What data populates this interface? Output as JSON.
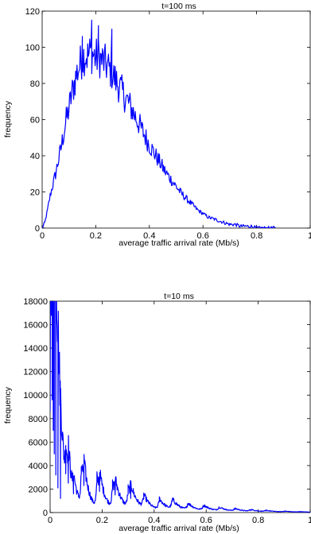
{
  "chart_data": [
    {
      "type": "line",
      "title": "t=100 ms",
      "xlabel": "average traffic arrival rate (Mb/s)",
      "ylabel": "frequency",
      "xlim": [
        0,
        1
      ],
      "ylim": [
        0,
        120
      ],
      "xticks": [
        0,
        0.2,
        0.4,
        0.6,
        0.8,
        1
      ],
      "xtick_labels": [
        "0",
        "0.2",
        "0.4",
        "0.6",
        "0.8",
        "1"
      ],
      "yticks": [
        0,
        20,
        40,
        60,
        80,
        100,
        120
      ],
      "ytick_labels": [
        "0",
        "20",
        "40",
        "60",
        "80",
        "100",
        "120"
      ],
      "grid": false,
      "legend": "none",
      "series": [
        {
          "color": "#0000ff",
          "x": [
            0.0,
            0.01,
            0.02,
            0.03,
            0.04,
            0.05,
            0.06,
            0.07,
            0.08,
            0.09,
            0.1,
            0.11,
            0.12,
            0.13,
            0.14,
            0.15,
            0.16,
            0.17,
            0.18,
            0.19,
            0.2,
            0.21,
            0.22,
            0.23,
            0.24,
            0.25,
            0.26,
            0.27,
            0.28,
            0.29,
            0.3,
            0.31,
            0.32,
            0.33,
            0.34,
            0.35,
            0.36,
            0.37,
            0.38,
            0.39,
            0.4,
            0.42,
            0.44,
            0.46,
            0.48,
            0.5,
            0.52,
            0.54,
            0.56,
            0.58,
            0.6,
            0.62,
            0.64,
            0.66,
            0.68,
            0.7,
            0.72,
            0.74,
            0.76,
            0.78,
            0.8,
            0.82,
            0.84,
            0.86,
            0.87
          ],
          "y": [
            0,
            3,
            10,
            18,
            24,
            30,
            37,
            44,
            52,
            60,
            66,
            74,
            80,
            86,
            90,
            94,
            96,
            95,
            97,
            96,
            94,
            95,
            93,
            92,
            90,
            88,
            86,
            83,
            80,
            78,
            75,
            72,
            70,
            67,
            64,
            61,
            58,
            55,
            52,
            49,
            46,
            41,
            36,
            31,
            27,
            23,
            19,
            16,
            13,
            10,
            8,
            6,
            5,
            4,
            3,
            2,
            2,
            1,
            1,
            1,
            0,
            0,
            0,
            0,
            0
          ]
        }
      ],
      "peaks": [
        {
          "x": 0.185,
          "y": 115
        },
        {
          "x": 0.21,
          "y": 112
        },
        {
          "x": 0.26,
          "y": 110
        },
        {
          "x": 0.15,
          "y": 106
        }
      ]
    },
    {
      "type": "line",
      "title": "t=10 ms",
      "xlabel": "average traffic arrival rate (Mb/s)",
      "ylabel": "frequency",
      "xlim": [
        0,
        1
      ],
      "ylim": [
        0,
        18000
      ],
      "xticks": [
        0,
        0.2,
        0.4,
        0.6,
        0.8,
        1
      ],
      "xtick_labels": [
        "0",
        "0.2",
        "0.4",
        "0.6",
        "0.8",
        "1"
      ],
      "yticks": [
        0,
        2000,
        4000,
        6000,
        8000,
        10000,
        12000,
        14000,
        16000,
        18000
      ],
      "ytick_labels": [
        "0",
        "2000",
        "4000",
        "6000",
        "8000",
        "10000",
        "12000",
        "14000",
        "16000",
        "18000"
      ],
      "grid": false,
      "legend": "none",
      "series": [
        {
          "color": "#0000ff",
          "spikes": [
            {
              "x": 0.002,
              "y": 17600
            },
            {
              "x": 0.005,
              "y": 16800
            },
            {
              "x": 0.008,
              "y": 9600
            },
            {
              "x": 0.012,
              "y": 7000
            },
            {
              "x": 0.016,
              "y": 5000
            },
            {
              "x": 0.022,
              "y": 3200
            },
            {
              "x": 0.03,
              "y": 2100
            },
            {
              "x": 0.04,
              "y": 1200
            },
            {
              "x": 0.06,
              "y": 3300
            },
            {
              "x": 0.07,
              "y": 2500
            },
            {
              "x": 0.09,
              "y": 1600
            },
            {
              "x": 0.12,
              "y": 3300
            },
            {
              "x": 0.13,
              "y": 2300
            },
            {
              "x": 0.18,
              "y": 2600
            },
            {
              "x": 0.19,
              "y": 1800
            },
            {
              "x": 0.24,
              "y": 2000
            },
            {
              "x": 0.25,
              "y": 1500
            },
            {
              "x": 0.3,
              "y": 1600
            },
            {
              "x": 0.31,
              "y": 1200
            },
            {
              "x": 0.36,
              "y": 1200
            },
            {
              "x": 0.42,
              "y": 1050
            },
            {
              "x": 0.47,
              "y": 950
            },
            {
              "x": 0.53,
              "y": 650
            },
            {
              "x": 0.59,
              "y": 500
            },
            {
              "x": 0.65,
              "y": 350
            },
            {
              "x": 0.71,
              "y": 250
            },
            {
              "x": 0.77,
              "y": 180
            },
            {
              "x": 0.83,
              "y": 120
            },
            {
              "x": 0.9,
              "y": 80
            },
            {
              "x": 0.96,
              "y": 40
            }
          ]
        }
      ]
    }
  ]
}
